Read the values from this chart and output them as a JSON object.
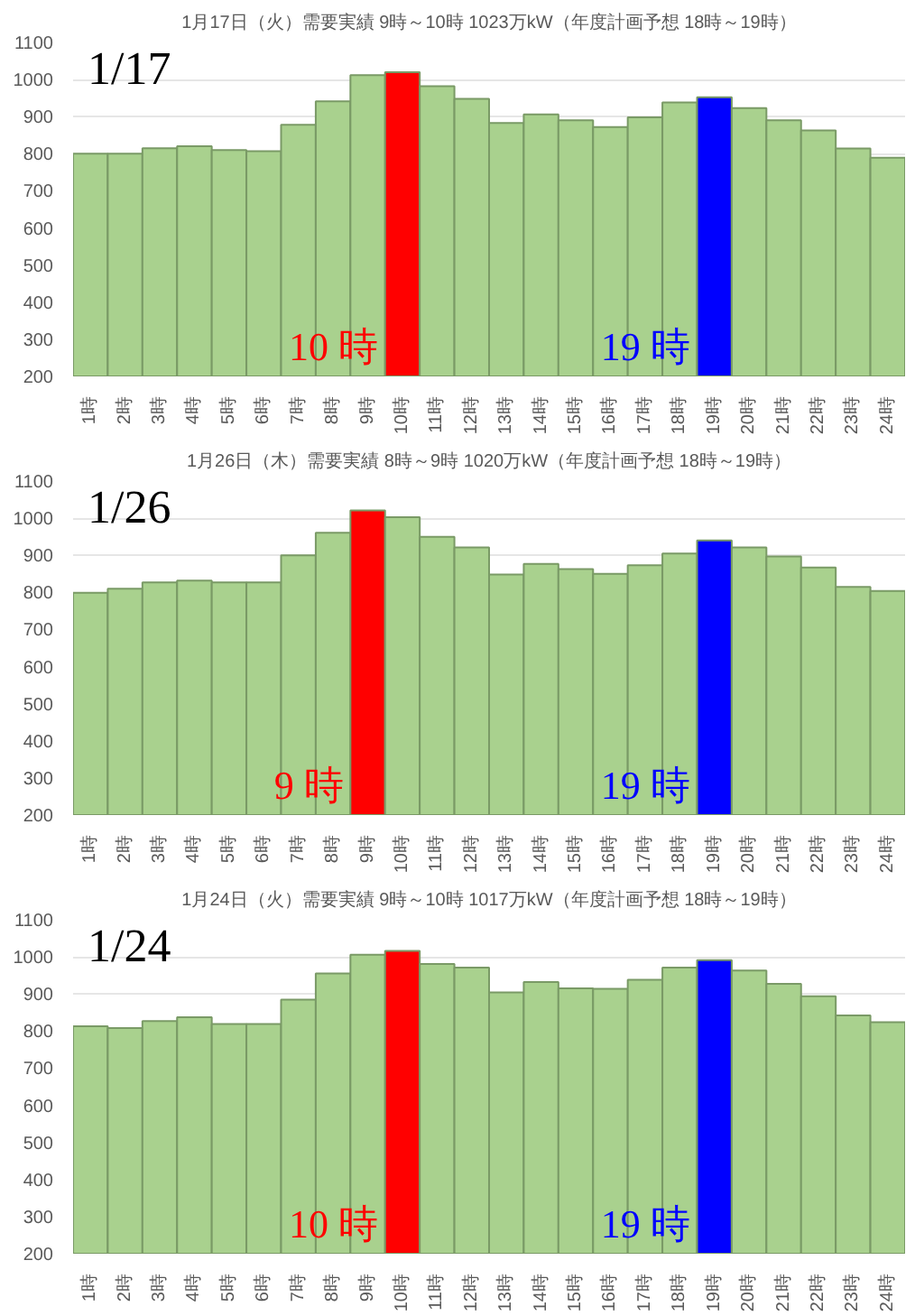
{
  "chart_data": [
    {
      "type": "bar",
      "title": "1月17日（火）需要実績 9時～10時 1023万kW（年度計画予想 18時～19時）",
      "categories": [
        "1時",
        "2時",
        "3時",
        "4時",
        "5時",
        "6時",
        "7時",
        "8時",
        "9時",
        "10時",
        "11時",
        "12時",
        "13時",
        "14時",
        "15時",
        "16時",
        "17時",
        "18時",
        "19時",
        "20時",
        "21時",
        "22時",
        "23時",
        "24時"
      ],
      "values": [
        800,
        800,
        815,
        820,
        810,
        807,
        878,
        941,
        1012,
        1020,
        982,
        948,
        883,
        906,
        890,
        872,
        898,
        938,
        952,
        923,
        890,
        863,
        814,
        789
      ],
      "colors": [
        "#a9d18e",
        "#a9d18e",
        "#a9d18e",
        "#a9d18e",
        "#a9d18e",
        "#a9d18e",
        "#a9d18e",
        "#a9d18e",
        "#a9d18e",
        "#ff0000",
        "#a9d18e",
        "#a9d18e",
        "#a9d18e",
        "#a9d18e",
        "#a9d18e",
        "#a9d18e",
        "#a9d18e",
        "#a9d18e",
        "#0000ff",
        "#a9d18e",
        "#a9d18e",
        "#a9d18e",
        "#a9d18e",
        "#a9d18e"
      ],
      "ylim": [
        200,
        1100
      ],
      "yticks": [
        200,
        300,
        400,
        500,
        600,
        700,
        800,
        900,
        1000,
        1100
      ],
      "grid": "y",
      "annotations": [
        "1/17",
        "10 時",
        "19 時"
      ]
    },
    {
      "type": "bar",
      "title": "1月26日（木）需要実績 8時～9時 1020万kW（年度計画予想 18時～19時）",
      "categories": [
        "1時",
        "2時",
        "3時",
        "4時",
        "5時",
        "6時",
        "7時",
        "8時",
        "9時",
        "10時",
        "11時",
        "12時",
        "13時",
        "14時",
        "15時",
        "16時",
        "17時",
        "18時",
        "19時",
        "20時",
        "21時",
        "22時",
        "23時",
        "24時"
      ],
      "values": [
        799,
        810,
        827,
        832,
        827,
        827,
        900,
        961,
        1021,
        1003,
        950,
        921,
        848,
        877,
        863,
        850,
        873,
        905,
        940,
        921,
        897,
        867,
        815,
        804
      ],
      "colors": [
        "#a9d18e",
        "#a9d18e",
        "#a9d18e",
        "#a9d18e",
        "#a9d18e",
        "#a9d18e",
        "#a9d18e",
        "#a9d18e",
        "#ff0000",
        "#a9d18e",
        "#a9d18e",
        "#a9d18e",
        "#a9d18e",
        "#a9d18e",
        "#a9d18e",
        "#a9d18e",
        "#a9d18e",
        "#a9d18e",
        "#0000ff",
        "#a9d18e",
        "#a9d18e",
        "#a9d18e",
        "#a9d18e",
        "#a9d18e"
      ],
      "ylim": [
        200,
        1100
      ],
      "yticks": [
        200,
        300,
        400,
        500,
        600,
        700,
        800,
        900,
        1000,
        1100
      ],
      "grid": "y",
      "annotations": [
        "1/26",
        "9 時",
        "19 時"
      ]
    },
    {
      "type": "bar",
      "title": "1月24日（火）需要実績 9時～10時 1017万kW（年度計画予想 18時～19時）",
      "categories": [
        "1時",
        "2時",
        "3時",
        "4時",
        "5時",
        "6時",
        "7時",
        "8時",
        "9時",
        "10時",
        "11時",
        "12時",
        "13時",
        "14時",
        "15時",
        "16時",
        "17時",
        "18時",
        "19時",
        "20時",
        "21時",
        "22時",
        "23時",
        "24時"
      ],
      "values": [
        813,
        808,
        827,
        837,
        819,
        819,
        885,
        955,
        1006,
        1016,
        981,
        971,
        904,
        932,
        915,
        914,
        938,
        971,
        991,
        963,
        927,
        894,
        842,
        824
      ],
      "colors": [
        "#a9d18e",
        "#a9d18e",
        "#a9d18e",
        "#a9d18e",
        "#a9d18e",
        "#a9d18e",
        "#a9d18e",
        "#a9d18e",
        "#a9d18e",
        "#ff0000",
        "#a9d18e",
        "#a9d18e",
        "#a9d18e",
        "#a9d18e",
        "#a9d18e",
        "#a9d18e",
        "#a9d18e",
        "#a9d18e",
        "#0000ff",
        "#a9d18e",
        "#a9d18e",
        "#a9d18e",
        "#a9d18e",
        "#a9d18e"
      ],
      "ylim": [
        200,
        1100
      ],
      "yticks": [
        200,
        300,
        400,
        500,
        600,
        700,
        800,
        900,
        1000,
        1100
      ],
      "grid": "y",
      "annotations": [
        "1/24",
        "10 時",
        "19 時"
      ]
    }
  ]
}
